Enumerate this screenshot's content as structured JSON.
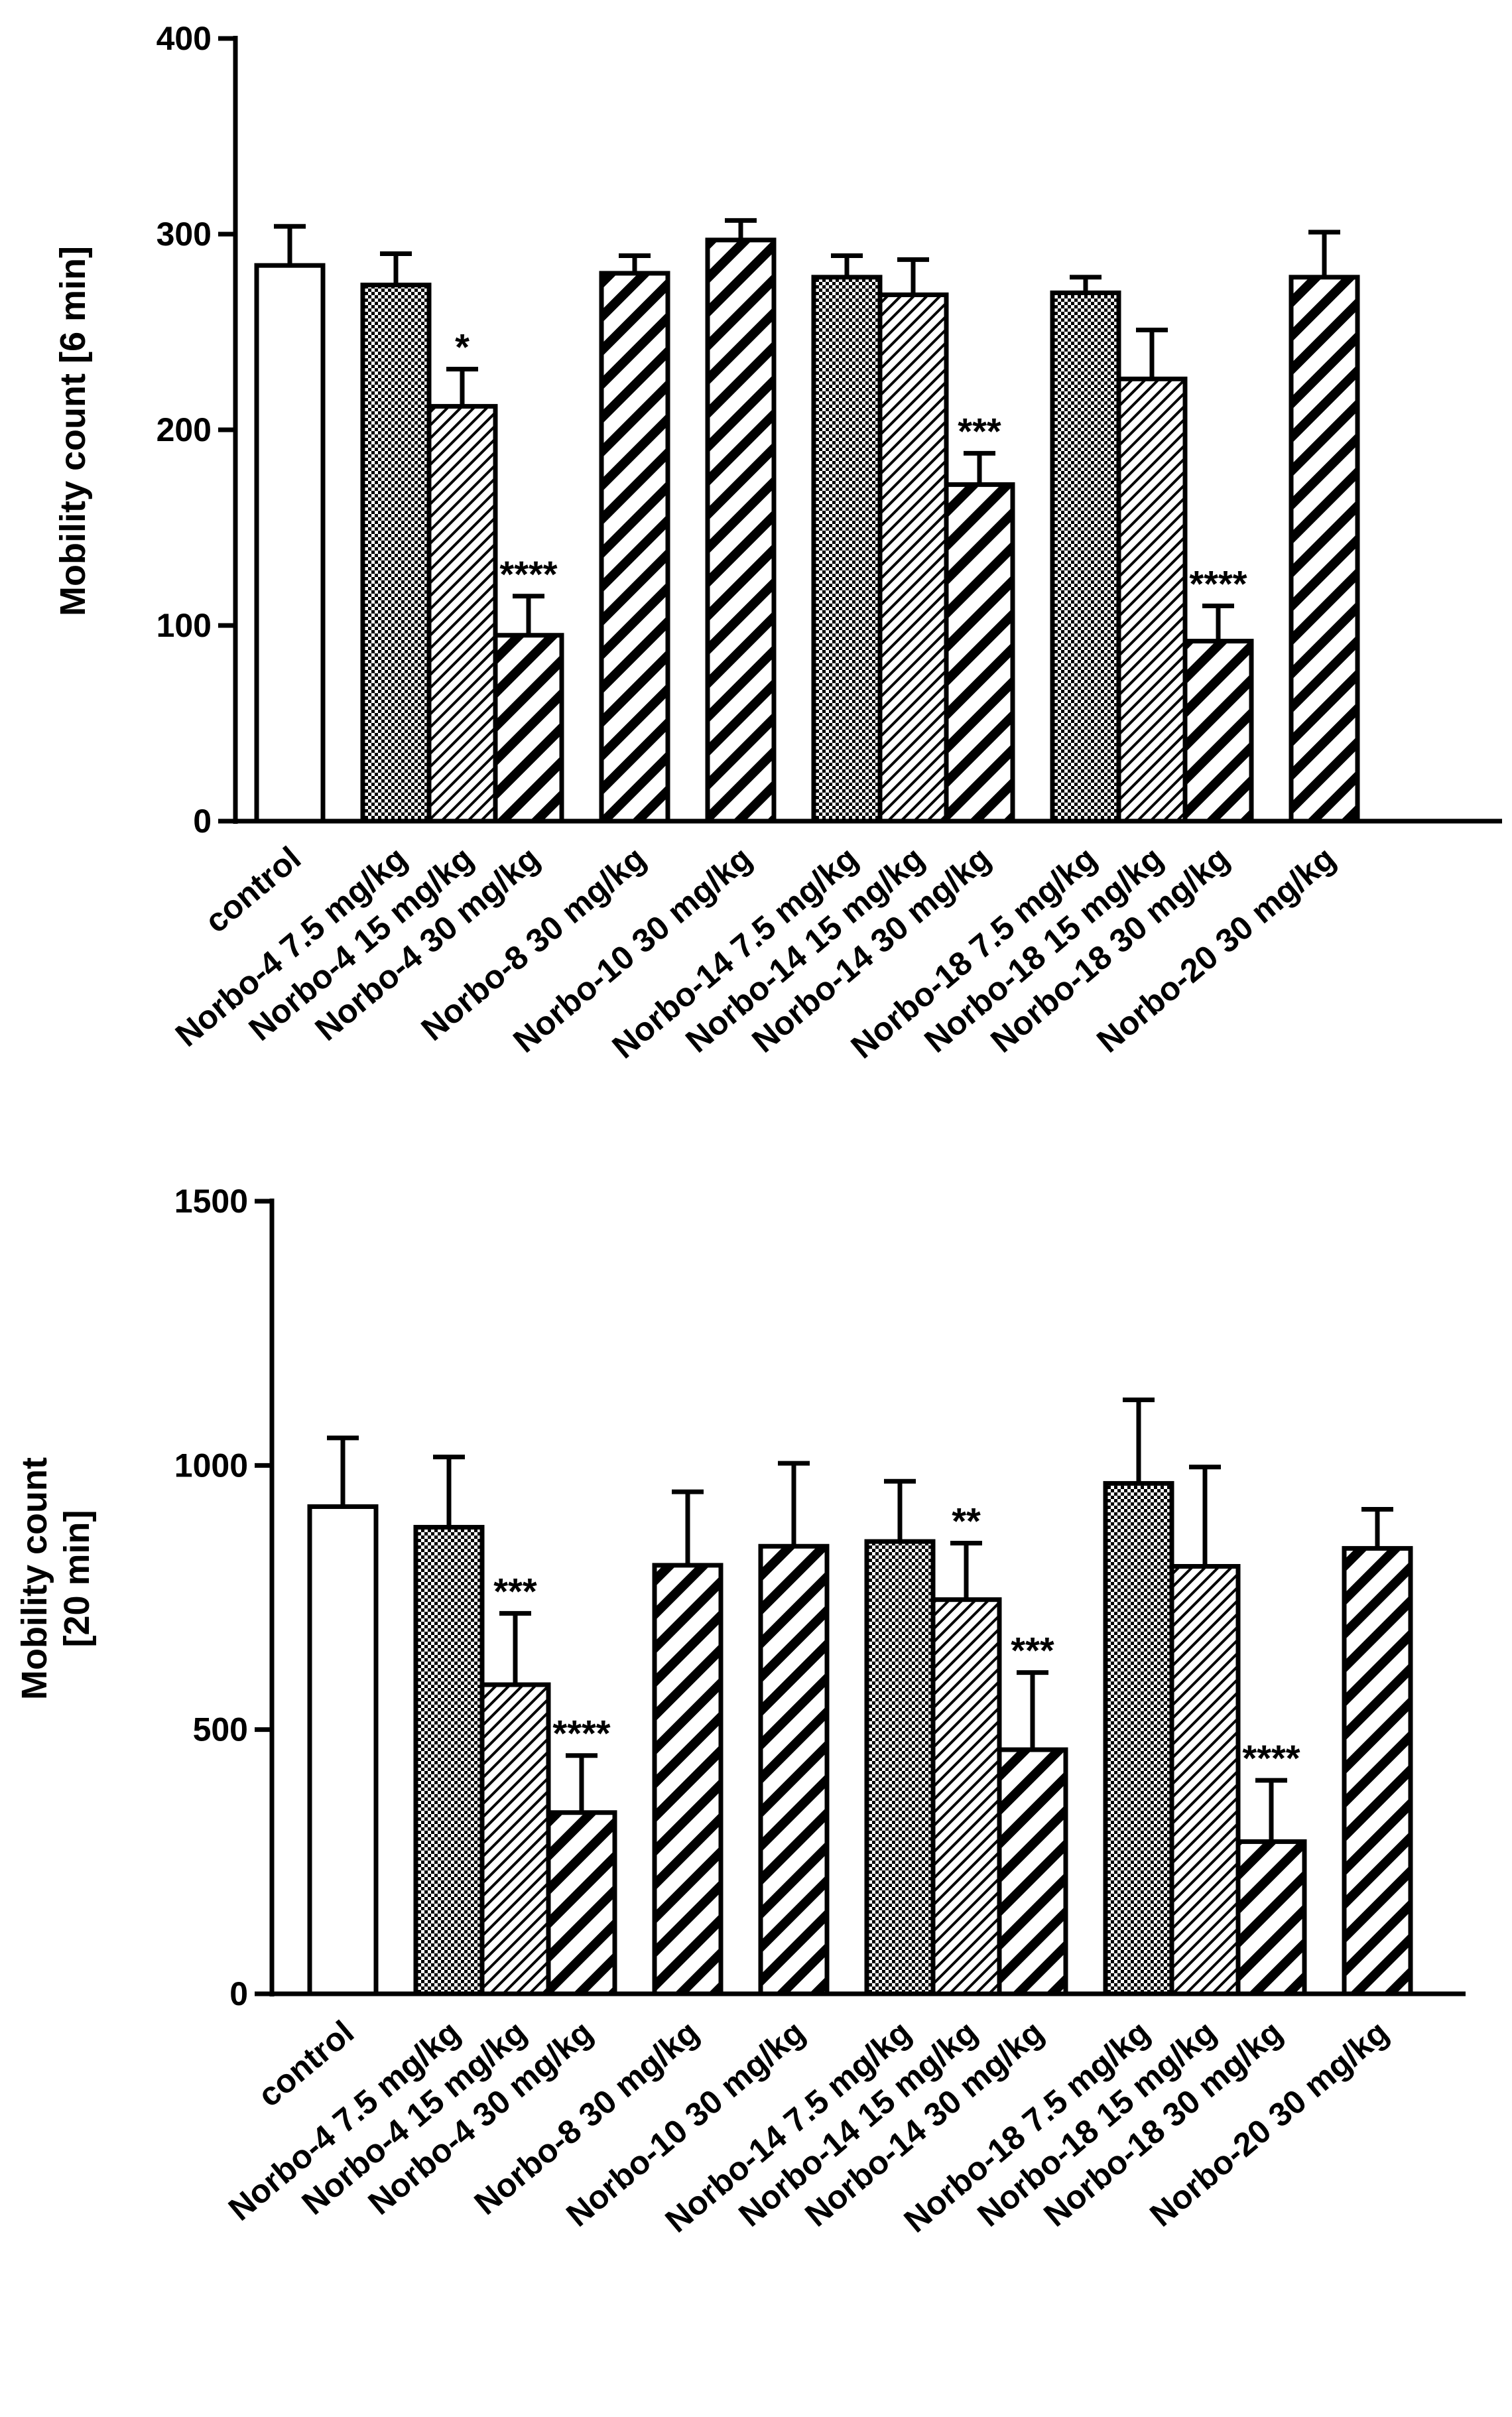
{
  "chart_data": [
    {
      "type": "bar",
      "title": "",
      "xlabel": "",
      "ylabel": "Mobility count [6 min]",
      "ylim": [
        0,
        400
      ],
      "yticks": [
        0,
        100,
        200,
        300,
        400
      ],
      "grid": false,
      "categories": [
        "control",
        "Norbo-4 7.5 mg/kg",
        "Norbo-4 15 mg/kg",
        "Norbo-4 30 mg/kg",
        "Norbo-8 30 mg/kg",
        "Norbo-10 30 mg/kg",
        "Norbo-14 7.5 mg/kg",
        "Norbo-14 15 mg/kg",
        "Norbo-14 30 mg/kg",
        "Norbo-18 7.5 mg/kg",
        "Norbo-18 15 mg/kg",
        "Norbo-18  30 mg/kg",
        "Norbo-20  30 mg/kg"
      ],
      "values": [
        284,
        274,
        212,
        95,
        280,
        297,
        278,
        269,
        172,
        270,
        226,
        92,
        278
      ],
      "errors": [
        20,
        16,
        19,
        20,
        9,
        10,
        11,
        18,
        16,
        8,
        25,
        18,
        23
      ],
      "fills": [
        "white",
        "dots",
        "thin",
        "thick",
        "thick",
        "thick",
        "dots",
        "thin",
        "thick",
        "dots",
        "thin",
        "thick",
        "thick"
      ],
      "annotations": [
        "",
        "",
        "*",
        "****",
        "",
        "",
        "",
        "",
        "***",
        "",
        "",
        "****",
        ""
      ]
    },
    {
      "type": "bar",
      "title": "",
      "xlabel": "",
      "ylabel": [
        "Mobility count",
        "[20 min]"
      ],
      "ylim": [
        0,
        1500
      ],
      "yticks": [
        0,
        500,
        1000,
        1500
      ],
      "grid": false,
      "categories": [
        "control",
        "Norbo-4 7.5 mg/kg",
        "Norbo-4 15 mg/kg",
        "Norbo-4 30 mg/kg",
        "Norbo-8 30 mg/kg",
        "Norbo-10 30 mg/kg",
        "Norbo-14 7.5 mg/kg",
        "Norbo-14 15 mg/kg",
        "Norbo-14 30 mg/kg",
        "Norbo-18 7.5 mg/kg",
        "Norbo-18 15 mg/kg",
        "Norbo-18 30 mg/kg",
        "Norbo-20 30 mg/kg"
      ],
      "values": [
        922,
        883,
        585,
        343,
        811,
        847,
        856,
        746,
        462,
        966,
        809,
        288,
        843
      ],
      "errors": [
        130,
        133,
        135,
        108,
        139,
        157,
        114,
        107,
        146,
        158,
        188,
        116,
        74
      ],
      "fills": [
        "white",
        "dots",
        "thin",
        "thick",
        "thick",
        "thick",
        "dots",
        "thin",
        "thick",
        "dots",
        "thin",
        "thick",
        "thick"
      ],
      "annotations": [
        "",
        "",
        "***",
        "****",
        "",
        "",
        "",
        "**",
        "***",
        "",
        "",
        "****",
        ""
      ]
    }
  ]
}
